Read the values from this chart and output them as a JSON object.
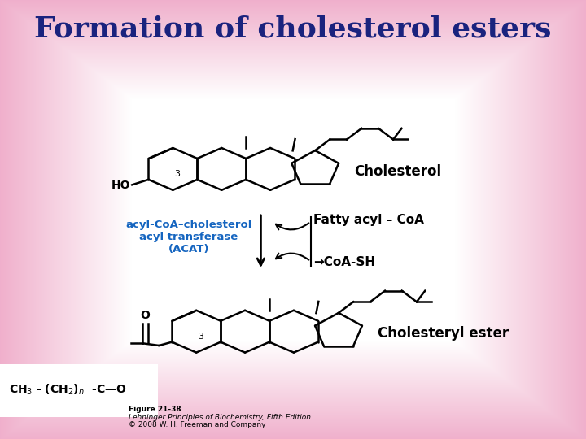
{
  "title": "Formation of cholesterol esters",
  "title_color": "#1a237e",
  "title_fontsize": 26,
  "bg_color": "#ffffff",
  "bg_edge_color": "#f0b0cc",
  "enzyme_text": "acyl-CoA–cholesterol\nacyl transferase\n(ACAT)",
  "enzyme_color": "#1565c0",
  "enzyme_fontsize": 9.5,
  "fatty_acyl_coa": "Fatty acyl – CoA",
  "coa_sh": "→CoA-SH",
  "reaction_text_color": "#000000",
  "reaction_fontsize": 11,
  "cholesterol_label": "Cholesterol",
  "cholesterol_label_fontsize": 12,
  "cholesterol_ester_label": "Cholesteryl ester",
  "cholesterol_ester_fontsize": 12,
  "figure_caption": "Figure 21-38",
  "figure_caption2": "Lehninger Principles of Biochemistry, Fifth Edition",
  "figure_caption3": "© 2008 W. H. Freeman and Company",
  "caption_fontsize": 6.5,
  "ho_label": "HO",
  "ho_fontsize": 10,
  "num3_fontsize": 8
}
